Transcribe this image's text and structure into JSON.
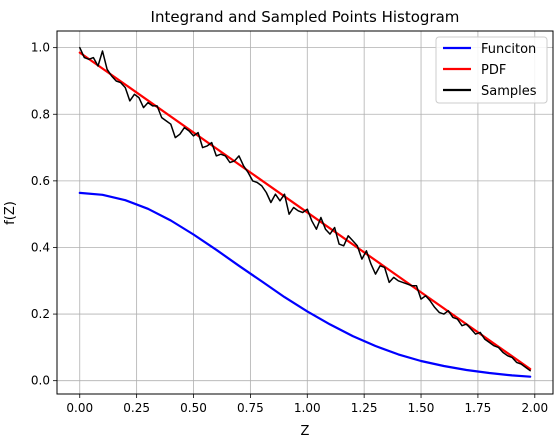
{
  "chart_data": {
    "type": "line",
    "title": "Integrand and Sampled Points Histogram",
    "xlabel": "Z",
    "ylabel": "f(Z)",
    "xlim": [
      -0.1,
      2.08
    ],
    "ylim": [
      -0.04,
      1.05
    ],
    "grid": true,
    "legend_position": "top-right",
    "x_ticks": [
      0.0,
      0.25,
      0.5,
      0.75,
      1.0,
      1.25,
      1.5,
      1.75,
      2.0
    ],
    "x_tick_labels": [
      "0.00",
      "0.25",
      "0.50",
      "0.75",
      "1.00",
      "1.25",
      "1.50",
      "1.75",
      "2.00"
    ],
    "y_ticks": [
      0.0,
      0.2,
      0.4,
      0.6,
      0.8,
      1.0
    ],
    "y_tick_labels": [
      "0.0",
      "0.2",
      "0.4",
      "0.6",
      "0.8",
      "1.0"
    ],
    "series": [
      {
        "name": "Funciton",
        "color": "#0000ff",
        "x": [
          0,
          0.1,
          0.2,
          0.3,
          0.4,
          0.5,
          0.6,
          0.7,
          0.8,
          0.9,
          1.0,
          1.1,
          1.2,
          1.3,
          1.4,
          1.5,
          1.6,
          1.7,
          1.8,
          1.9,
          1.98
        ],
        "y": [
          0.564,
          0.558,
          0.542,
          0.516,
          0.481,
          0.439,
          0.393,
          0.345,
          0.298,
          0.251,
          0.208,
          0.169,
          0.134,
          0.104,
          0.079,
          0.059,
          0.044,
          0.032,
          0.023,
          0.016,
          0.012
        ]
      },
      {
        "name": "PDF",
        "color": "#ff0000",
        "x": [
          0,
          1.98
        ],
        "y": [
          0.985,
          0.035
        ]
      },
      {
        "name": "Samples",
        "color": "#000000",
        "x": [
          0,
          0.02,
          0.04,
          0.06,
          0.08,
          0.1,
          0.12,
          0.14,
          0.16,
          0.18,
          0.2,
          0.22,
          0.24,
          0.26,
          0.28,
          0.3,
          0.32,
          0.34,
          0.36,
          0.38,
          0.4,
          0.42,
          0.44,
          0.46,
          0.48,
          0.5,
          0.52,
          0.54,
          0.56,
          0.58,
          0.6,
          0.62,
          0.64,
          0.66,
          0.68,
          0.7,
          0.72,
          0.74,
          0.76,
          0.78,
          0.8,
          0.82,
          0.84,
          0.86,
          0.88,
          0.9,
          0.92,
          0.94,
          0.96,
          0.98,
          1.0,
          1.02,
          1.04,
          1.06,
          1.08,
          1.1,
          1.12,
          1.14,
          1.16,
          1.18,
          1.2,
          1.22,
          1.24,
          1.26,
          1.28,
          1.3,
          1.32,
          1.34,
          1.36,
          1.38,
          1.4,
          1.42,
          1.44,
          1.46,
          1.48,
          1.5,
          1.52,
          1.54,
          1.56,
          1.58,
          1.6,
          1.62,
          1.64,
          1.66,
          1.68,
          1.7,
          1.72,
          1.74,
          1.76,
          1.78,
          1.8,
          1.82,
          1.84,
          1.86,
          1.88,
          1.9,
          1.92,
          1.94,
          1.96,
          1.98
        ],
        "y": [
          1.0,
          0.97,
          0.965,
          0.97,
          0.945,
          0.99,
          0.935,
          0.915,
          0.9,
          0.895,
          0.88,
          0.84,
          0.86,
          0.85,
          0.82,
          0.835,
          0.825,
          0.825,
          0.79,
          0.78,
          0.77,
          0.73,
          0.74,
          0.76,
          0.75,
          0.735,
          0.745,
          0.7,
          0.705,
          0.715,
          0.675,
          0.68,
          0.675,
          0.655,
          0.66,
          0.675,
          0.645,
          0.625,
          0.6,
          0.595,
          0.585,
          0.565,
          0.535,
          0.56,
          0.54,
          0.56,
          0.5,
          0.52,
          0.51,
          0.505,
          0.515,
          0.48,
          0.455,
          0.49,
          0.455,
          0.44,
          0.46,
          0.41,
          0.405,
          0.435,
          0.42,
          0.405,
          0.365,
          0.39,
          0.35,
          0.32,
          0.345,
          0.34,
          0.295,
          0.31,
          0.3,
          0.295,
          0.29,
          0.285,
          0.285,
          0.245,
          0.255,
          0.24,
          0.22,
          0.205,
          0.2,
          0.21,
          0.19,
          0.185,
          0.165,
          0.17,
          0.155,
          0.14,
          0.145,
          0.125,
          0.115,
          0.105,
          0.1,
          0.085,
          0.075,
          0.07,
          0.055,
          0.05,
          0.04,
          0.03
        ]
      }
    ]
  }
}
